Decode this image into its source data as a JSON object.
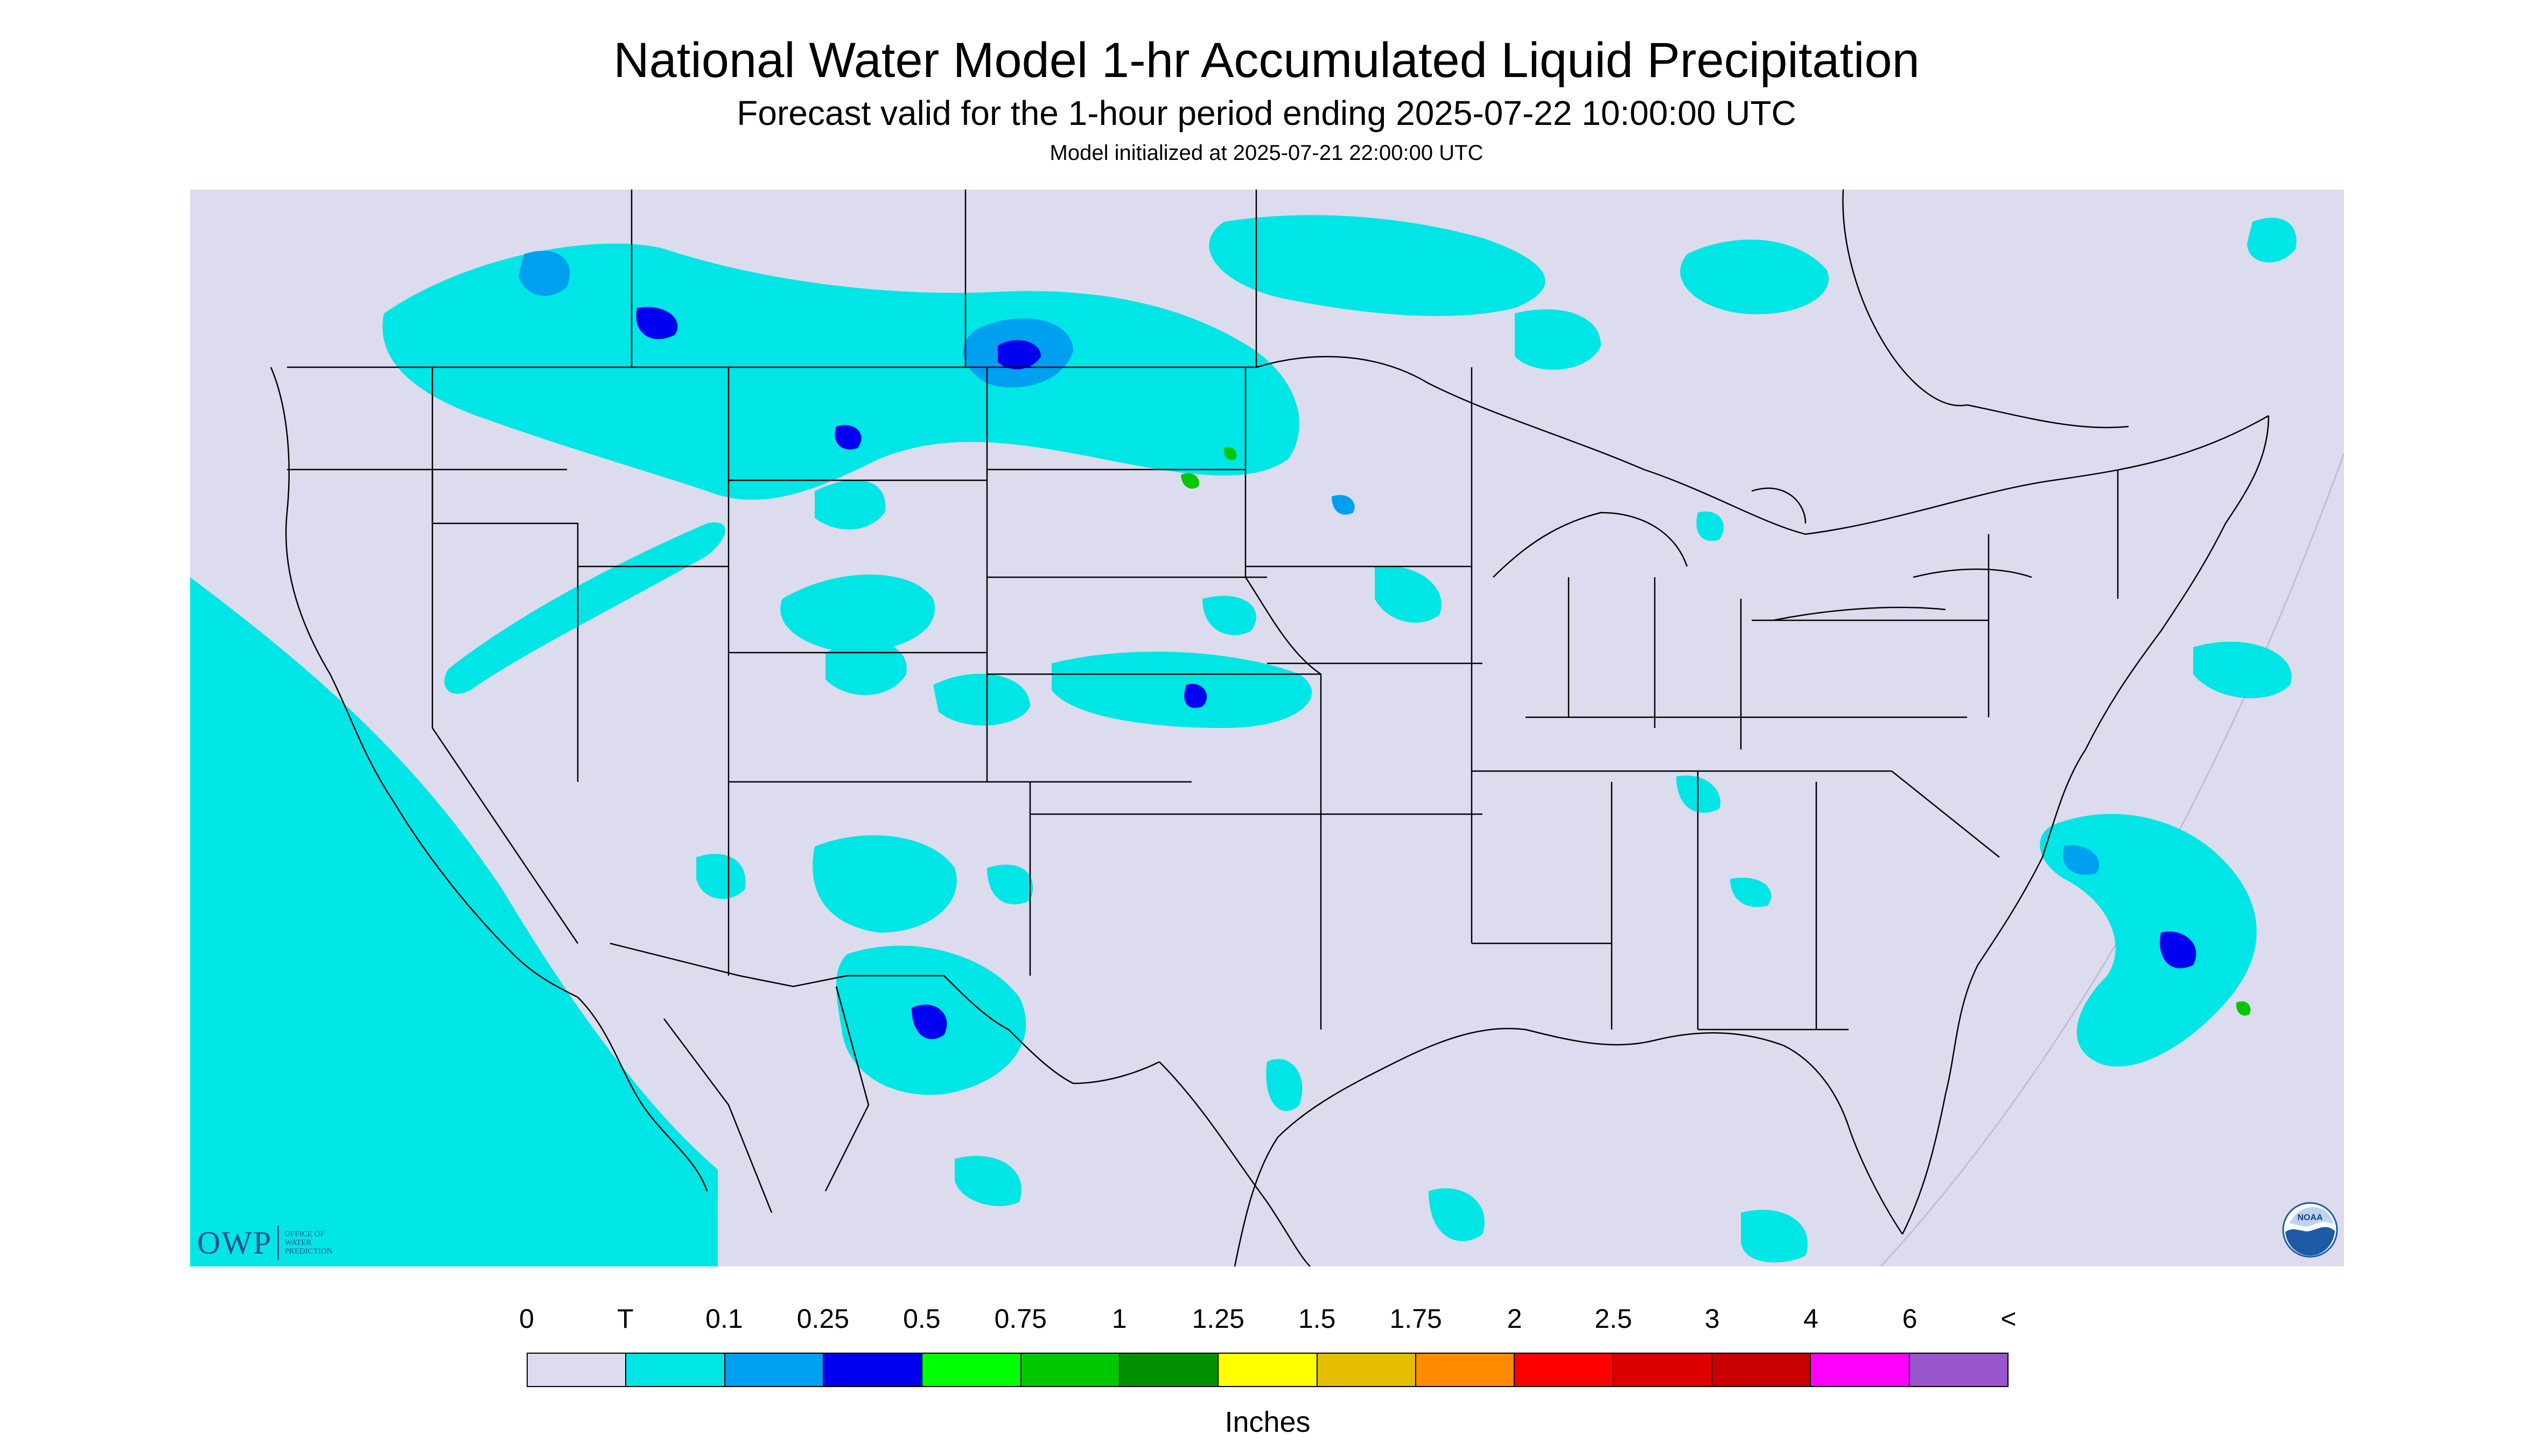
{
  "header": {
    "title": "National Water Model 1-hr Accumulated Liquid Precipitation",
    "subtitle": "Forecast valid for the 1-hour period ending 2025-07-22 10:00:00 UTC",
    "init": "Model initialized at 2025-07-21 22:00:00 UTC"
  },
  "map": {
    "background_color": "#dcdcee",
    "coverage_color": "#00e5e5",
    "boundary_color": "#000000"
  },
  "logos": {
    "owp_letters": "OWP",
    "owp_subtext": "OFFICE OF\nWATER\nPREDICTION",
    "noaa_text": "NOAA"
  },
  "legend": {
    "units": "Inches",
    "labels": [
      "0",
      "T",
      "0.1",
      "0.25",
      "0.5",
      "0.75",
      "1",
      "1.25",
      "1.5",
      "1.75",
      "2",
      "2.5",
      "3",
      "4",
      "6",
      "<"
    ],
    "colors": [
      "#dcdcee",
      "#00e5e5",
      "#00a0f0",
      "#0000f0",
      "#00ff00",
      "#00c800",
      "#009000",
      "#ffff00",
      "#e5be00",
      "#ff8c00",
      "#ff0000",
      "#dc0000",
      "#c80000",
      "#ff00ff",
      "#9955cc"
    ]
  }
}
